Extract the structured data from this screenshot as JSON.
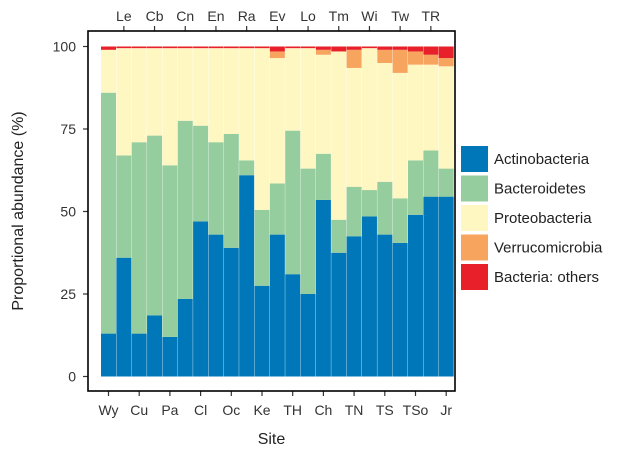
{
  "chart_data": {
    "type": "bar",
    "stacked": true,
    "xlabel": "Site",
    "ylabel": "Proportional abundance (%)",
    "ylim": [
      0,
      100
    ],
    "yticks": [
      0,
      25,
      50,
      75,
      100
    ],
    "grid": false,
    "legend_position": "right",
    "categories": [
      "Wy",
      "Le",
      "Cu",
      "Cb",
      "Pa",
      "Cn",
      "Cl",
      "En",
      "Oc",
      "Ra",
      "Ke",
      "Ev",
      "TH",
      "Lo",
      "Ch",
      "Tm",
      "TN",
      "Wi",
      "TS",
      "Tw",
      "TSo",
      "TR",
      "Jr"
    ],
    "categories_top": [
      "Le",
      "Cb",
      "Cn",
      "En",
      "Ra",
      "Ev",
      "Lo",
      "Tm",
      "Wi",
      "Tw",
      "TR"
    ],
    "categories_bottom": [
      "Wy",
      "Cu",
      "Pa",
      "Cl",
      "Oc",
      "Ke",
      "TH",
      "Ch",
      "TN",
      "TS",
      "TSo",
      "Jr"
    ],
    "series": [
      {
        "name": "Actinobacteria",
        "color": "#0077B8",
        "values": [
          13,
          36,
          13,
          18.5,
          12,
          23.5,
          47,
          43,
          39,
          61,
          27.5,
          43,
          31,
          25,
          53.5,
          37.5,
          42.5,
          48.5,
          43,
          40.5,
          49,
          54.5,
          54.5
        ]
      },
      {
        "name": "Bacteroidetes",
        "color": "#95CD9E",
        "values": [
          73,
          31,
          58,
          54.5,
          52,
          54,
          29,
          28,
          34.5,
          4.5,
          23,
          15.5,
          43.5,
          38,
          14,
          10,
          15,
          8,
          16,
          13.5,
          16.5,
          14,
          8.5
        ]
      },
      {
        "name": "Proteobacteria",
        "color": "#FFF7C2",
        "values": [
          13,
          32.5,
          28.5,
          26.5,
          35.5,
          22,
          23.5,
          28.5,
          26,
          34,
          49,
          38,
          25,
          36.5,
          30,
          51,
          36,
          43,
          36,
          38,
          29,
          26,
          31
        ]
      },
      {
        "name": "Verrucomicrobia",
        "color": "#F7A45F",
        "values": [
          0,
          0,
          0,
          0,
          0,
          0,
          0,
          0,
          0,
          0,
          0,
          2,
          0,
          0,
          1.5,
          0,
          5.5,
          0,
          4,
          7,
          4,
          3,
          2.5
        ]
      },
      {
        "name": "Bacteria: others",
        "color": "#E8202A",
        "values": [
          1,
          0.5,
          0.5,
          0.5,
          0.5,
          0.5,
          0.5,
          0.5,
          0.5,
          0.5,
          0.5,
          1.5,
          0.5,
          0.5,
          1,
          1.5,
          1,
          0.5,
          1,
          1,
          1.5,
          2.5,
          3.5
        ]
      }
    ]
  }
}
